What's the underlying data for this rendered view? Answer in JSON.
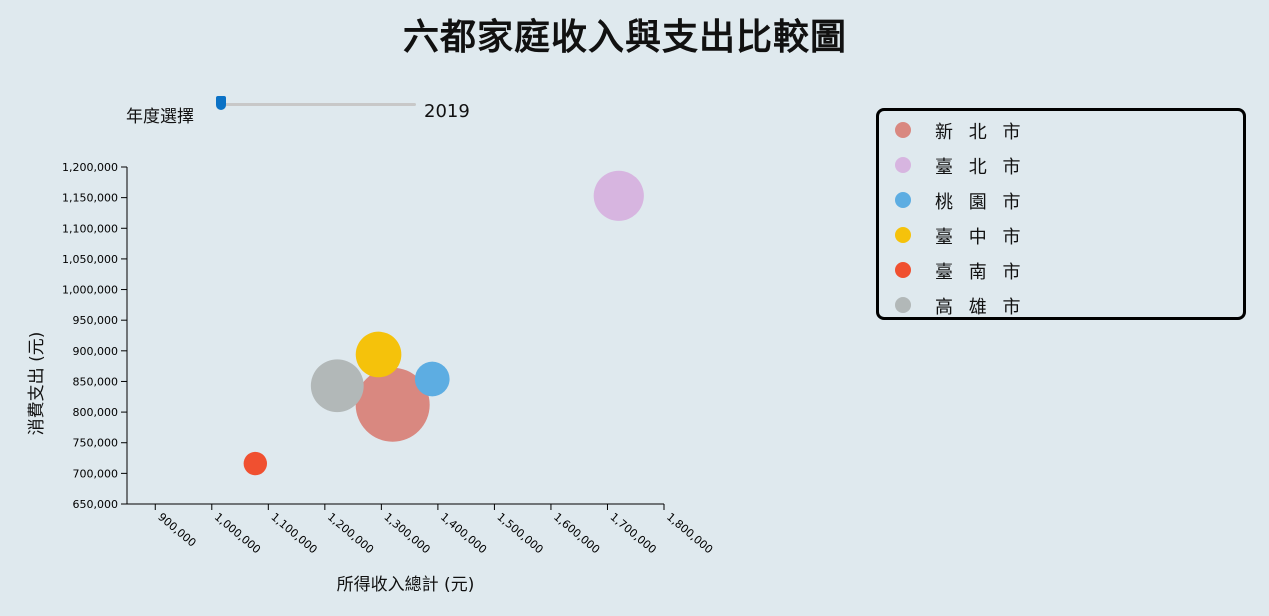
{
  "title": "六都家庭收入與支出比較圖",
  "year_control": {
    "label": "年度選擇",
    "value": "2019",
    "position_fraction": 0.0
  },
  "chart_data": {
    "type": "scatter",
    "title": "六都家庭收入與支出比較圖",
    "xlabel": "所得收入總計 (元)",
    "ylabel": "消費支出 (元)",
    "xlim": [
      850000,
      1800000
    ],
    "ylim": [
      650000,
      1200000
    ],
    "x_ticks": [
      900000,
      1000000,
      1100000,
      1200000,
      1300000,
      1400000,
      1500000,
      1600000,
      1700000,
      1800000
    ],
    "x_tick_labels": [
      "900,000",
      "1,000,000",
      "1,100,000",
      "1,200,000",
      "1,300,000",
      "1,400,000",
      "1,500,000",
      "1,600,000",
      "1,700,000",
      "1,800,000"
    ],
    "y_ticks": [
      650000,
      700000,
      750000,
      800000,
      850000,
      900000,
      950000,
      1000000,
      1050000,
      1100000,
      1150000,
      1200000
    ],
    "y_tick_labels": [
      "650,000",
      "700,000",
      "750,000",
      "800,000",
      "850,000",
      "900,000",
      "950,000",
      "1,000,000",
      "1,050,000",
      "1,100,000",
      "1,150,000",
      "1,200,000"
    ],
    "grid": false,
    "legend_position": "top-right",
    "series": [
      {
        "name": "新 北 市",
        "x": 1320000,
        "y": 812000,
        "size": 1.0,
        "color": "#d98880"
      },
      {
        "name": "臺 北 市",
        "x": 1720000,
        "y": 1153000,
        "size": 0.46,
        "color": "#d7b5e0"
      },
      {
        "name": "桃 園 市",
        "x": 1390000,
        "y": 854000,
        "size": 0.22,
        "color": "#5dade2"
      },
      {
        "name": "臺 中 市",
        "x": 1295000,
        "y": 894000,
        "size": 0.38,
        "color": "#f5c20b"
      },
      {
        "name": "臺 南 市",
        "x": 1077000,
        "y": 716000,
        "size": 0.1,
        "color": "#f05030"
      },
      {
        "name": "高 雄 市",
        "x": 1222000,
        "y": 843000,
        "size": 0.51,
        "color": "#b2b8b8"
      }
    ]
  }
}
